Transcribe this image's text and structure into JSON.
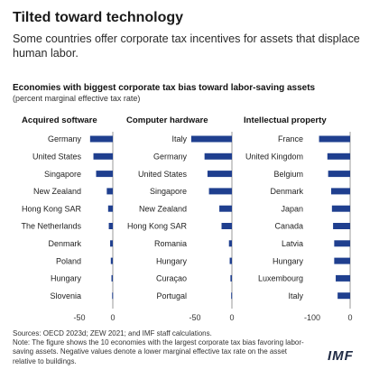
{
  "header": {
    "title": "Tilted toward technology",
    "subtitle": "Some countries offer corporate tax incentives for assets that displace human labor."
  },
  "chart_data": {
    "type": "bar",
    "title": "Economies with biggest corporate tax bias toward labor-saving assets",
    "subtitle": "(percent marginal effective tax rate)",
    "bar_color": "#1f3f8f",
    "panels": [
      {
        "title": "Acquired software",
        "categories": [
          "Germany",
          "United States",
          "Singapore",
          "New Zealand",
          "Hong Kong SAR",
          "The Netherlands",
          "Denmark",
          "Poland",
          "Hungary",
          "Slovenia"
        ],
        "values": [
          -34,
          -29,
          -25,
          -9,
          -7,
          -6,
          -4,
          -3,
          -2,
          -1
        ],
        "xlim": [
          -55,
          5
        ],
        "ticks": [
          -50,
          0
        ]
      },
      {
        "title": "Computer hardware",
        "categories": [
          "Italy",
          "Germany",
          "United States",
          "Singapore",
          "New Zealand",
          "Hong Kong SAR",
          "Romania",
          "Hungary",
          "Curaçao",
          "Portugal"
        ],
        "values": [
          -55,
          -37,
          -33,
          -31,
          -17,
          -14,
          -4,
          -3,
          -2,
          -1
        ],
        "xlim": [
          -60,
          5
        ],
        "ticks": [
          -50,
          0
        ]
      },
      {
        "title": "Intellectual property",
        "categories": [
          "France",
          "United Kingdom",
          "Belgium",
          "Denmark",
          "Japan",
          "Canada",
          "Latvia",
          "Hungary",
          "Luxembourg",
          "Italy"
        ],
        "values": [
          -82,
          -60,
          -58,
          -50,
          -48,
          -45,
          -42,
          -42,
          -38,
          -33
        ],
        "xlim": [
          -115,
          10
        ],
        "ticks": [
          -100,
          0
        ]
      }
    ]
  },
  "footer": {
    "sources": "Sources: OECD 2023d; ZEW 2021; and IMF staff calculations.",
    "note": "Note: The figure shows the 10 economies with the largest corporate tax bias favoring labor-saving assets. Negative values denote a lower marginal effective tax rate on the asset relative to buildings."
  },
  "logo": {
    "text": "IMF"
  }
}
